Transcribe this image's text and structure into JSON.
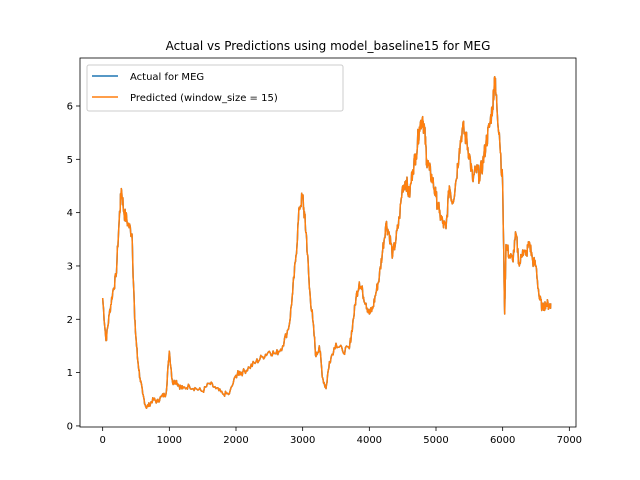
{
  "chart_data": {
    "type": "line",
    "title": "Actual vs Predictions using model_baseline15 for MEG",
    "xlabel": "",
    "ylabel": "",
    "xlim": [
      -340,
      7100
    ],
    "ylim": [
      -0.02,
      6.9
    ],
    "xticks": [
      0,
      1000,
      2000,
      3000,
      4000,
      5000,
      6000,
      7000
    ],
    "yticks": [
      0,
      1,
      2,
      3,
      4,
      5,
      6
    ],
    "grid": false,
    "legend": "upper-left",
    "series": [
      {
        "name": "Actual for MEG",
        "color": "#1f77b4",
        "x": [
          0,
          50,
          100,
          150,
          200,
          250,
          280,
          320,
          380,
          440,
          480,
          520,
          560,
          600,
          650,
          700,
          760,
          820,
          880,
          950,
          1000,
          1050,
          1100,
          1150,
          1200,
          1300,
          1400,
          1500,
          1600,
          1700,
          1800,
          1900,
          2000,
          2050,
          2100,
          2200,
          2300,
          2400,
          2500,
          2600,
          2700,
          2800,
          2850,
          2900,
          2950,
          3000,
          3030,
          3060,
          3100,
          3150,
          3200,
          3250,
          3300,
          3350,
          3400,
          3500,
          3600,
          3700,
          3750,
          3800,
          3850,
          3900,
          3950,
          4000,
          4050,
          4100,
          4150,
          4200,
          4250,
          4300,
          4350,
          4400,
          4450,
          4500,
          4550,
          4600,
          4650,
          4700,
          4750,
          4800,
          4830,
          4860,
          4900,
          4950,
          5000,
          5050,
          5100,
          5150,
          5200,
          5250,
          5300,
          5350,
          5400,
          5450,
          5500,
          5550,
          5600,
          5650,
          5700,
          5750,
          5800,
          5850,
          5880,
          5900,
          5950,
          6000,
          6030,
          6050,
          6100,
          6150,
          6200,
          6250,
          6300,
          6350,
          6400,
          6450,
          6500,
          6550,
          6600,
          6650,
          6700,
          6720
        ],
        "y": [
          2.4,
          1.6,
          2.1,
          2.5,
          2.8,
          3.9,
          4.45,
          4.0,
          3.8,
          3.6,
          2.0,
          1.3,
          0.9,
          0.6,
          0.35,
          0.4,
          0.5,
          0.45,
          0.55,
          0.6,
          1.4,
          0.8,
          0.85,
          0.75,
          0.7,
          0.75,
          0.7,
          0.65,
          0.8,
          0.7,
          0.6,
          0.6,
          0.95,
          1.0,
          1.0,
          1.1,
          1.2,
          1.3,
          1.4,
          1.35,
          1.5,
          1.9,
          2.5,
          3.2,
          4.1,
          4.3,
          3.9,
          3.5,
          2.6,
          2.0,
          1.3,
          1.5,
          0.9,
          0.7,
          1.2,
          1.55,
          1.4,
          1.45,
          1.9,
          2.4,
          2.7,
          2.5,
          2.3,
          2.1,
          2.2,
          2.5,
          2.8,
          3.3,
          3.8,
          3.6,
          3.2,
          3.5,
          3.9,
          4.5,
          4.6,
          4.3,
          4.8,
          5.1,
          5.6,
          5.8,
          5.5,
          5.0,
          4.8,
          4.6,
          4.3,
          4.0,
          3.8,
          3.7,
          4.5,
          4.2,
          4.6,
          5.2,
          5.6,
          5.4,
          5.1,
          4.6,
          4.8,
          4.7,
          4.9,
          5.3,
          5.6,
          6.0,
          6.55,
          6.2,
          5.5,
          4.5,
          2.1,
          3.4,
          3.2,
          3.1,
          3.6,
          3.0,
          3.3,
          3.2,
          3.45,
          3.1,
          3.0,
          2.4,
          2.2,
          2.3,
          2.25,
          2.3
        ]
      },
      {
        "name": "Predicted (window_size = 15)",
        "color": "#ff7f0e",
        "x": [
          0,
          50,
          100,
          150,
          200,
          250,
          280,
          320,
          380,
          440,
          480,
          520,
          560,
          600,
          650,
          700,
          760,
          820,
          880,
          950,
          1000,
          1050,
          1100,
          1150,
          1200,
          1300,
          1400,
          1500,
          1600,
          1700,
          1800,
          1900,
          2000,
          2050,
          2100,
          2200,
          2300,
          2400,
          2500,
          2600,
          2700,
          2800,
          2850,
          2900,
          2950,
          3000,
          3030,
          3060,
          3100,
          3150,
          3200,
          3250,
          3300,
          3350,
          3400,
          3500,
          3600,
          3700,
          3750,
          3800,
          3850,
          3900,
          3950,
          4000,
          4050,
          4100,
          4150,
          4200,
          4250,
          4300,
          4350,
          4400,
          4450,
          4500,
          4550,
          4600,
          4650,
          4700,
          4750,
          4800,
          4830,
          4860,
          4900,
          4950,
          5000,
          5050,
          5100,
          5150,
          5200,
          5250,
          5300,
          5350,
          5400,
          5450,
          5500,
          5550,
          5600,
          5650,
          5700,
          5750,
          5800,
          5850,
          5880,
          5900,
          5950,
          6000,
          6030,
          6050,
          6100,
          6150,
          6200,
          6250,
          6300,
          6350,
          6400,
          6450,
          6500,
          6550,
          6600,
          6650,
          6700,
          6720
        ],
        "y": [
          2.4,
          1.6,
          2.1,
          2.5,
          2.8,
          3.9,
          4.45,
          4.0,
          3.8,
          3.6,
          2.0,
          1.3,
          0.9,
          0.6,
          0.35,
          0.4,
          0.5,
          0.45,
          0.55,
          0.6,
          1.4,
          0.8,
          0.85,
          0.75,
          0.7,
          0.75,
          0.7,
          0.65,
          0.8,
          0.7,
          0.6,
          0.6,
          0.95,
          1.0,
          1.0,
          1.1,
          1.2,
          1.3,
          1.4,
          1.35,
          1.5,
          1.9,
          2.5,
          3.2,
          4.1,
          4.3,
          3.9,
          3.5,
          2.6,
          2.0,
          1.3,
          1.5,
          0.9,
          0.7,
          1.2,
          1.55,
          1.4,
          1.45,
          1.9,
          2.4,
          2.7,
          2.5,
          2.3,
          2.1,
          2.2,
          2.5,
          2.8,
          3.3,
          3.8,
          3.6,
          3.2,
          3.5,
          3.9,
          4.5,
          4.6,
          4.3,
          4.8,
          5.1,
          5.6,
          5.8,
          5.5,
          5.0,
          4.8,
          4.6,
          4.3,
          4.0,
          3.8,
          3.7,
          4.5,
          4.2,
          4.6,
          5.2,
          5.6,
          5.4,
          5.1,
          4.6,
          4.8,
          4.7,
          4.9,
          5.3,
          5.6,
          6.0,
          6.55,
          6.2,
          5.5,
          4.5,
          2.1,
          3.4,
          3.2,
          3.1,
          3.6,
          3.0,
          3.3,
          3.2,
          3.45,
          3.1,
          3.0,
          2.4,
          2.2,
          2.3,
          2.25,
          2.3
        ]
      }
    ]
  }
}
